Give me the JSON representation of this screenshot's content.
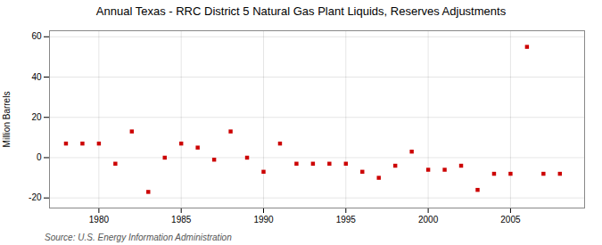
{
  "chart_data": {
    "type": "scatter",
    "title": "Annual Texas - RRC District 5 Natural Gas Plant Liquids, Reserves Adjustments",
    "ylabel": "Million Barrels",
    "source": "Source: U.S. Energy Information Administration",
    "x": [
      1978,
      1979,
      1980,
      1981,
      1982,
      1983,
      1984,
      1985,
      1986,
      1987,
      1988,
      1989,
      1990,
      1991,
      1992,
      1993,
      1994,
      1995,
      1996,
      1997,
      1998,
      1999,
      2000,
      2001,
      2002,
      2003,
      2004,
      2005,
      2006,
      2007,
      2008
    ],
    "values": [
      7,
      7,
      7,
      -3,
      13,
      -17,
      0,
      7,
      5,
      -1,
      13,
      0,
      -7,
      7,
      -3,
      -3,
      -3,
      -3,
      -7,
      -10,
      -4,
      3,
      -6,
      -6,
      -4,
      -16,
      -8,
      -8,
      55,
      -8,
      -8
    ],
    "color": "#cc0000",
    "marker": "square",
    "xlim": [
      1977.0,
      2009.5
    ],
    "ylim": [
      -25,
      63
    ],
    "xticks": [
      1980,
      1985,
      1990,
      1995,
      2000,
      2005
    ],
    "yticks": [
      -20,
      0,
      20,
      40,
      60
    ],
    "grid": true
  }
}
